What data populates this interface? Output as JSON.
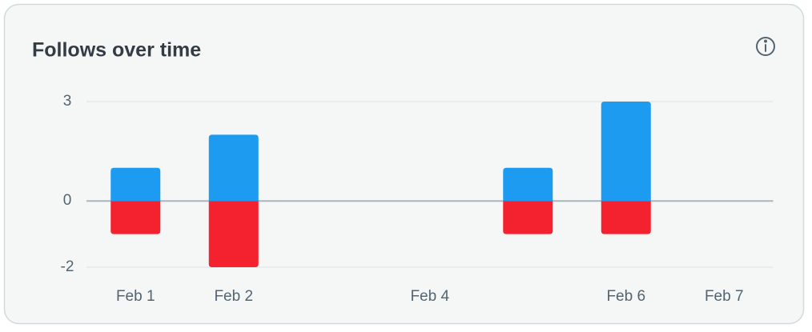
{
  "chart_data": {
    "type": "bar",
    "title": "Follows over time",
    "categories": [
      "Feb 1",
      "Feb 2",
      null,
      "Feb 4",
      null,
      "Feb 6",
      "Feb 7"
    ],
    "series": [
      {
        "color": "#1d9bf0",
        "values": [
          1,
          2,
          0,
          0,
          1,
          3,
          0
        ]
      },
      {
        "color": "#f4212e",
        "values": [
          -1,
          -2,
          0,
          0,
          -1,
          -1,
          0
        ]
      }
    ],
    "ylim": [
      -2,
      3
    ],
    "yticks": [
      -2,
      0,
      3
    ],
    "grid": true
  }
}
